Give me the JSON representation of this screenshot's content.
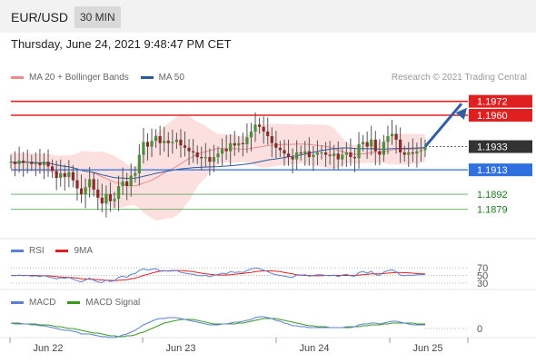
{
  "header": {
    "symbol": "EUR/USD",
    "timeframe": "30 MIN",
    "datetime": "Thursday, June 24, 2021 9:48:47 PM CET"
  },
  "legend": {
    "main": [
      {
        "label": "MA 20 + Bollinger Bands",
        "color": "#f08a8a"
      },
      {
        "label": "MA 50",
        "color": "#2c5aa0"
      }
    ],
    "credit": "Research © 2021 Trading Central",
    "rsi": [
      {
        "label": "RSI",
        "color": "#5b7fd6"
      },
      {
        "label": "9MA",
        "color": "#e02020"
      }
    ],
    "macd": [
      {
        "label": "MACD",
        "color": "#5b7fd6"
      },
      {
        "label": "MACD Signal",
        "color": "#3a9a20"
      }
    ]
  },
  "chart_data": {
    "type": "candlestick",
    "ylim": [
      1.186,
      1.1985
    ],
    "x_ticks": [
      "Jun 22",
      "Jun 23",
      "Jun 24",
      "Jun 25"
    ],
    "price_levels": [
      {
        "value": 1.1972,
        "label": "1.1972",
        "kind": "resistance"
      },
      {
        "value": 1.196,
        "label": "1.1960",
        "kind": "resistance"
      },
      {
        "value": 1.1933,
        "label": "1.1933",
        "kind": "last"
      },
      {
        "value": 1.1913,
        "label": "1.1913",
        "kind": "pivot"
      },
      {
        "value": 1.1892,
        "label": "1.1892",
        "kind": "support"
      },
      {
        "value": 1.1879,
        "label": "1.1879",
        "kind": "support"
      }
    ],
    "rsi_levels": [
      "70",
      "50",
      "30"
    ],
    "macd_zero_label": "0",
    "closes": [
      1.192,
      1.1918,
      1.1921,
      1.1919,
      1.192,
      1.1918,
      1.1919,
      1.1917,
      1.192,
      1.1916,
      1.1912,
      1.1906,
      1.191,
      1.1907,
      1.1911,
      1.1904,
      1.1897,
      1.1892,
      1.1898,
      1.1905,
      1.1896,
      1.1889,
      1.1884,
      1.1892,
      1.1886,
      1.1888,
      1.1899,
      1.1903,
      1.1899,
      1.1908,
      1.191,
      1.1926,
      1.1937,
      1.1933,
      1.1938,
      1.1942,
      1.1936,
      1.1938,
      1.1936,
      1.1937,
      1.1939,
      1.1934,
      1.1932,
      1.1929,
      1.1928,
      1.1924,
      1.1923,
      1.1924,
      1.192,
      1.1924,
      1.1927,
      1.1931,
      1.1929,
      1.1936,
      1.1934,
      1.1936,
      1.1935,
      1.1941,
      1.1946,
      1.1952,
      1.195,
      1.1946,
      1.1942,
      1.1936,
      1.1932,
      1.193,
      1.1927,
      1.1924,
      1.1922,
      1.1928,
      1.1927,
      1.1929,
      1.1924,
      1.1926,
      1.1928,
      1.1928,
      1.1926,
      1.1925,
      1.1927,
      1.1922,
      1.1926,
      1.1928,
      1.1924,
      1.1923,
      1.1935,
      1.1937,
      1.1933,
      1.1939,
      1.1929,
      1.1926,
      1.1937,
      1.1942,
      1.1944,
      1.1939,
      1.1928,
      1.1926,
      1.1928,
      1.1927,
      1.1929,
      1.193,
      1.1933
    ],
    "rsi": [
      50,
      49,
      51,
      49,
      50,
      48,
      49,
      47,
      50,
      46,
      44,
      41,
      44,
      42,
      45,
      40,
      36,
      33,
      38,
      43,
      37,
      33,
      31,
      38,
      34,
      36,
      45,
      48,
      45,
      53,
      55,
      63,
      68,
      64,
      66,
      68,
      62,
      63,
      61,
      62,
      63,
      58,
      56,
      54,
      53,
      50,
      49,
      50,
      47,
      50,
      53,
      56,
      54,
      60,
      58,
      59,
      58,
      63,
      67,
      70,
      68,
      64,
      60,
      55,
      52,
      50,
      48,
      46,
      45,
      51,
      50,
      52,
      48,
      50,
      52,
      52,
      50,
      49,
      51,
      47,
      51,
      53,
      49,
      48,
      58,
      60,
      56,
      61,
      52,
      50,
      59,
      63,
      65,
      60,
      51,
      49,
      51,
      50,
      52,
      52,
      53
    ],
    "rsi_ma": [
      50,
      50,
      50,
      50,
      50,
      50,
      50,
      49,
      49,
      49,
      48,
      47,
      46,
      45,
      45,
      44,
      43,
      41,
      41,
      40,
      40,
      39,
      38,
      37,
      37,
      36,
      37,
      38,
      39,
      41,
      43,
      46,
      50,
      53,
      56,
      59,
      61,
      62,
      62,
      63,
      63,
      63,
      62,
      61,
      60,
      58,
      56,
      54,
      53,
      52,
      51,
      51,
      51,
      52,
      53,
      54,
      55,
      57,
      58,
      60,
      61,
      62,
      62,
      62,
      61,
      60,
      58,
      56,
      54,
      52,
      51,
      50,
      50,
      49,
      49,
      49,
      50,
      50,
      50,
      50,
      50,
      50,
      50,
      50,
      51,
      52,
      53,
      54,
      54,
      54,
      55,
      56,
      57,
      58,
      58,
      57,
      57,
      56,
      55,
      54,
      54
    ],
    "macd": [
      0.0,
      -0.1,
      -0.1,
      -0.1,
      -0.1,
      -0.2,
      -0.2,
      -0.3,
      -0.3,
      -0.4,
      -0.5,
      -0.6,
      -0.7,
      -0.8,
      -0.8,
      -0.9,
      -1.0,
      -1.2,
      -1.2,
      -1.2,
      -1.3,
      -1.4,
      -1.5,
      -1.5,
      -1.6,
      -1.6,
      -1.5,
      -1.3,
      -1.2,
      -1.0,
      -0.8,
      -0.5,
      -0.2,
      0.0,
      0.2,
      0.4,
      0.5,
      0.5,
      0.6,
      0.6,
      0.6,
      0.5,
      0.4,
      0.3,
      0.2,
      0.1,
      0.0,
      -0.1,
      -0.2,
      -0.2,
      -0.2,
      -0.1,
      -0.1,
      0.0,
      0.1,
      0.1,
      0.2,
      0.3,
      0.4,
      0.6,
      0.7,
      0.7,
      0.6,
      0.5,
      0.3,
      0.2,
      0.0,
      -0.1,
      -0.3,
      -0.3,
      -0.4,
      -0.4,
      -0.5,
      -0.5,
      -0.5,
      -0.5,
      -0.5,
      -0.5,
      -0.5,
      -0.5,
      -0.5,
      -0.4,
      -0.4,
      -0.4,
      -0.2,
      -0.1,
      -0.1,
      0.0,
      0.0,
      -0.1,
      0.0,
      0.1,
      0.2,
      0.2,
      0.1,
      0.0,
      -0.1,
      -0.2,
      -0.2,
      -0.2,
      -0.2
    ],
    "macd_signal": [
      0.0,
      0.0,
      0.0,
      -0.1,
      -0.1,
      -0.1,
      -0.1,
      -0.2,
      -0.2,
      -0.2,
      -0.3,
      -0.4,
      -0.4,
      -0.5,
      -0.6,
      -0.6,
      -0.7,
      -0.8,
      -0.9,
      -1.0,
      -1.1,
      -1.1,
      -1.2,
      -1.3,
      -1.4,
      -1.4,
      -1.5,
      -1.5,
      -1.4,
      -1.4,
      -1.3,
      -1.1,
      -1.0,
      -0.8,
      -0.6,
      -0.4,
      -0.2,
      0.0,
      0.1,
      0.2,
      0.3,
      0.4,
      0.4,
      0.4,
      0.4,
      0.3,
      0.2,
      0.1,
      0.0,
      -0.1,
      -0.1,
      -0.1,
      -0.1,
      -0.1,
      -0.1,
      0.0,
      0.0,
      0.1,
      0.2,
      0.3,
      0.4,
      0.5,
      0.5,
      0.5,
      0.5,
      0.4,
      0.3,
      0.2,
      0.1,
      0.0,
      -0.1,
      -0.2,
      -0.3,
      -0.3,
      -0.4,
      -0.4,
      -0.4,
      -0.5,
      -0.5,
      -0.5,
      -0.5,
      -0.5,
      -0.5,
      -0.4,
      -0.4,
      -0.3,
      -0.3,
      -0.2,
      -0.2,
      -0.2,
      -0.1,
      -0.1,
      0.0,
      0.0,
      0.0,
      0.0,
      0.0,
      0.0,
      -0.1,
      -0.1,
      -0.1
    ]
  }
}
